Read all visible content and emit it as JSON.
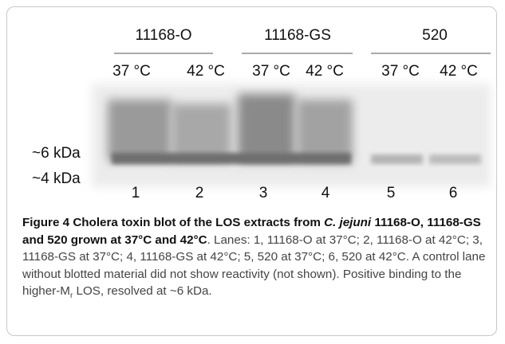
{
  "figure": {
    "strains": [
      "11168-O",
      "11168-GS",
      "520"
    ],
    "temperatures": [
      "37 °C",
      "42 °C",
      "37 °C",
      "42 °C",
      "37 °C",
      "42 °C"
    ],
    "markers": [
      "~6 kDa",
      "~4 kDa"
    ],
    "lanes": [
      1,
      2,
      3,
      4,
      5,
      6
    ],
    "caption": {
      "label": "Figure 4",
      "title_start": "Cholera toxin blot of the LOS extracts from ",
      "organism": "C. jejuni",
      "title_end": " 11168-O, 11168-GS and 520 grown at 37°C and 42°C",
      "body_start": ". Lanes: 1, 11168-O at 37°C; 2, 11168-O at 42°C; 3, 11168-GS at 37°C; 4, 11168-GS at 42°C; 5, 520 at 37°C; 6, 520 at 42°C. A control lane without blotted material did not show reactivity (not shown). Positive binding to the higher-M",
      "subscript": "r",
      "body_end": " LOS, resolved at ~6 kDa."
    }
  }
}
